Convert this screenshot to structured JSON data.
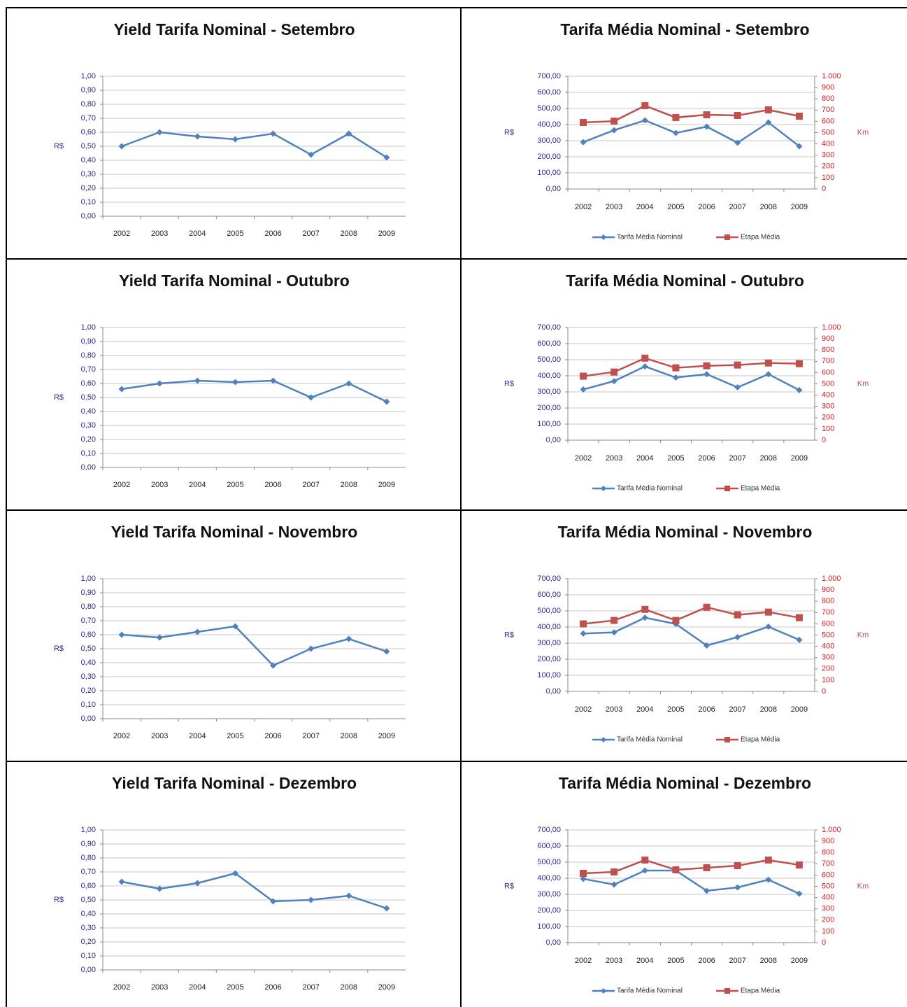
{
  "chart_data": [
    {
      "type": "line",
      "title": "Yield Tarifa Nominal - Setembro",
      "ylabel": "R$",
      "grid": true,
      "categories": [
        "2002",
        "2003",
        "2004",
        "2005",
        "2006",
        "2007",
        "2008",
        "2009"
      ],
      "values": [
        0.5,
        0.6,
        0.57,
        0.55,
        0.59,
        0.44,
        0.59,
        0.42
      ],
      "color": "#4f81bd",
      "ylim": [
        0,
        1
      ],
      "yticks": [
        {
          "value": 0,
          "label": "0,00"
        },
        {
          "value": 0.1,
          "label": "0,10"
        },
        {
          "value": 0.2,
          "label": "0,20"
        },
        {
          "value": 0.3,
          "label": "0,30"
        },
        {
          "value": 0.4,
          "label": "0,40"
        },
        {
          "value": 0.5,
          "label": "0,50"
        },
        {
          "value": 0.6,
          "label": "0,60"
        },
        {
          "value": 0.7,
          "label": "0,70"
        },
        {
          "value": 0.8,
          "label": "0,80"
        },
        {
          "value": 0.9,
          "label": "0,90"
        },
        {
          "value": 1,
          "label": "1,00"
        }
      ]
    },
    {
      "type": "line",
      "title": "Tarifa Média Nominal - Setembro",
      "ylabel": "R$",
      "y2label": "Km",
      "grid": true,
      "categories": [
        "2002",
        "2003",
        "2004",
        "2005",
        "2006",
        "2007",
        "2008",
        "2009"
      ],
      "series": [
        {
          "name": "Tarifa Média Nominal",
          "color": "#4f81bd",
          "values": [
            291,
            365,
            426,
            348,
            387,
            287,
            413,
            265
          ]
        },
        {
          "name": "Etapa Média",
          "color": "#c0504d",
          "axis": "y2",
          "values": [
            590,
            602,
            739,
            634,
            658,
            652,
            702,
            646
          ]
        }
      ],
      "ylim": [
        0,
        700
      ],
      "yticks": [
        {
          "value": 0,
          "label": "0,00"
        },
        {
          "value": 100,
          "label": "100,00"
        },
        {
          "value": 200,
          "label": "200,00"
        },
        {
          "value": 300,
          "label": "300,00"
        },
        {
          "value": 400,
          "label": "400,00"
        },
        {
          "value": 500,
          "label": "500,00"
        },
        {
          "value": 600,
          "label": "600,00"
        },
        {
          "value": 700,
          "label": "700,00"
        }
      ],
      "y2lim": [
        0,
        1000
      ],
      "y2ticks": [
        0,
        100,
        200,
        300,
        400,
        500,
        600,
        700,
        800,
        900,
        {
          "value": 1000,
          "label": "1.000"
        }
      ]
    },
    {
      "type": "line",
      "title": "Yield Tarifa Nominal - Outubro",
      "ylabel": "R$",
      "grid": true,
      "categories": [
        "2002",
        "2003",
        "2004",
        "2005",
        "2006",
        "2007",
        "2008",
        "2009"
      ],
      "values": [
        0.56,
        0.6,
        0.62,
        0.61,
        0.62,
        0.5,
        0.6,
        0.47
      ],
      "color": "#4f81bd",
      "ylim": [
        0,
        1
      ],
      "yticks": [
        {
          "value": 0,
          "label": "0,00"
        },
        {
          "value": 0.1,
          "label": "0,10"
        },
        {
          "value": 0.2,
          "label": "0,20"
        },
        {
          "value": 0.3,
          "label": "0,30"
        },
        {
          "value": 0.4,
          "label": "0,40"
        },
        {
          "value": 0.5,
          "label": "0,50"
        },
        {
          "value": 0.6,
          "label": "0,60"
        },
        {
          "value": 0.7,
          "label": "0,70"
        },
        {
          "value": 0.8,
          "label": "0,80"
        },
        {
          "value": 0.9,
          "label": "0,90"
        },
        {
          "value": 1,
          "label": "1,00"
        }
      ]
    },
    {
      "type": "line",
      "title": "Tarifa Média Nominal - Outubro",
      "ylabel": "R$",
      "y2label": "Km",
      "grid": true,
      "categories": [
        "2002",
        "2003",
        "2004",
        "2005",
        "2006",
        "2007",
        "2008",
        "2009"
      ],
      "series": [
        {
          "name": "Tarifa Média Nominal",
          "color": "#4f81bd",
          "values": [
            315,
            367,
            458,
            389,
            410,
            328,
            410,
            311
          ]
        },
        {
          "name": "Etapa Média",
          "color": "#c0504d",
          "axis": "y2",
          "values": [
            568,
            605,
            728,
            642,
            660,
            667,
            685,
            679
          ]
        }
      ],
      "ylim": [
        0,
        700
      ],
      "yticks": [
        {
          "value": 0,
          "label": "0,00"
        },
        {
          "value": 100,
          "label": "100,00"
        },
        {
          "value": 200,
          "label": "200,00"
        },
        {
          "value": 300,
          "label": "300,00"
        },
        {
          "value": 400,
          "label": "400,00"
        },
        {
          "value": 500,
          "label": "500,00"
        },
        {
          "value": 600,
          "label": "600,00"
        },
        {
          "value": 700,
          "label": "700,00"
        }
      ],
      "y2lim": [
        0,
        1000
      ],
      "y2ticks": [
        0,
        100,
        200,
        300,
        400,
        500,
        600,
        700,
        800,
        900,
        {
          "value": 1000,
          "label": "1.000"
        }
      ]
    },
    {
      "type": "line",
      "title": "Yield Tarifa Nominal - Novembro",
      "ylabel": "R$",
      "grid": true,
      "categories": [
        "2002",
        "2003",
        "2004",
        "2005",
        "2006",
        "2007",
        "2008",
        "2009"
      ],
      "values": [
        0.6,
        0.58,
        0.62,
        0.66,
        0.38,
        0.5,
        0.57,
        0.48
      ],
      "color": "#4f81bd",
      "ylim": [
        0,
        1
      ],
      "yticks": [
        {
          "value": 0,
          "label": "0,00"
        },
        {
          "value": 0.1,
          "label": "0,10"
        },
        {
          "value": 0.2,
          "label": "0,20"
        },
        {
          "value": 0.3,
          "label": "0,30"
        },
        {
          "value": 0.4,
          "label": "0,40"
        },
        {
          "value": 0.5,
          "label": "0,50"
        },
        {
          "value": 0.6,
          "label": "0,60"
        },
        {
          "value": 0.7,
          "label": "0,70"
        },
        {
          "value": 0.8,
          "label": "0,80"
        },
        {
          "value": 0.9,
          "label": "0,90"
        },
        {
          "value": 1,
          "label": "1,00"
        }
      ]
    },
    {
      "type": "line",
      "title": "Tarifa Média Nominal - Novembro",
      "ylabel": "R$",
      "y2label": "Km",
      "grid": true,
      "categories": [
        "2002",
        "2003",
        "2004",
        "2005",
        "2006",
        "2007",
        "2008",
        "2009"
      ],
      "series": [
        {
          "name": "Tarifa Média Nominal",
          "color": "#4f81bd",
          "values": [
            359,
            367,
            458,
            419,
            285,
            337,
            402,
            320
          ]
        },
        {
          "name": "Etapa Média",
          "color": "#c0504d",
          "axis": "y2",
          "values": [
            599,
            630,
            728,
            630,
            747,
            679,
            704,
            654
          ]
        }
      ],
      "ylim": [
        0,
        700
      ],
      "yticks": [
        {
          "value": 0,
          "label": "0,00"
        },
        {
          "value": 100,
          "label": "100,00"
        },
        {
          "value": 200,
          "label": "200,00"
        },
        {
          "value": 300,
          "label": "300,00"
        },
        {
          "value": 400,
          "label": "400,00"
        },
        {
          "value": 500,
          "label": "500,00"
        },
        {
          "value": 600,
          "label": "600,00"
        },
        {
          "value": 700,
          "label": "700,00"
        }
      ],
      "y2lim": [
        0,
        1000
      ],
      "y2ticks": [
        0,
        100,
        200,
        300,
        400,
        500,
        600,
        700,
        800,
        900,
        {
          "value": 1000,
          "label": "1.000"
        }
      ]
    },
    {
      "type": "line",
      "title": "Yield Tarifa Nominal - Dezembro",
      "ylabel": "R$",
      "grid": true,
      "categories": [
        "2002",
        "2003",
        "2004",
        "2005",
        "2006",
        "2007",
        "2008",
        "2009"
      ],
      "values": [
        0.63,
        0.58,
        0.62,
        0.69,
        0.49,
        0.5,
        0.53,
        0.44
      ],
      "color": "#4f81bd",
      "ylim": [
        0,
        1
      ],
      "yticks": [
        {
          "value": 0,
          "label": "0,00"
        },
        {
          "value": 0.1,
          "label": "0,10"
        },
        {
          "value": 0.2,
          "label": "0,20"
        },
        {
          "value": 0.3,
          "label": "0,30"
        },
        {
          "value": 0.4,
          "label": "0,40"
        },
        {
          "value": 0.5,
          "label": "0,50"
        },
        {
          "value": 0.6,
          "label": "0,60"
        },
        {
          "value": 0.7,
          "label": "0,70"
        },
        {
          "value": 0.8,
          "label": "0,80"
        },
        {
          "value": 0.9,
          "label": "0,90"
        },
        {
          "value": 1,
          "label": "1,00"
        }
      ]
    },
    {
      "type": "line",
      "title": "Tarifa Média Nominal - Dezembro",
      "ylabel": "R$",
      "y2label": "Km",
      "grid": true,
      "categories": [
        "2002",
        "2003",
        "2004",
        "2005",
        "2006",
        "2007",
        "2008",
        "2009"
      ],
      "series": [
        {
          "name": "Tarifa Média Nominal",
          "color": "#4f81bd",
          "values": [
            396,
            361,
            448,
            448,
            322,
            343,
            391,
            304
          ]
        },
        {
          "name": "Etapa Média",
          "color": "#c0504d",
          "axis": "y2",
          "values": [
            615,
            627,
            733,
            646,
            665,
            683,
            733,
            689
          ]
        }
      ],
      "ylim": [
        0,
        700
      ],
      "yticks": [
        {
          "value": 0,
          "label": "0,00"
        },
        {
          "value": 100,
          "label": "100,00"
        },
        {
          "value": 200,
          "label": "200,00"
        },
        {
          "value": 300,
          "label": "300,00"
        },
        {
          "value": 400,
          "label": "400,00"
        },
        {
          "value": 500,
          "label": "500,00"
        },
        {
          "value": 600,
          "label": "600,00"
        },
        {
          "value": 700,
          "label": "700,00"
        }
      ],
      "y2lim": [
        0,
        1000
      ],
      "y2ticks": [
        0,
        100,
        200,
        300,
        400,
        500,
        600,
        700,
        800,
        900,
        {
          "value": 1000,
          "label": "1.000"
        }
      ]
    }
  ]
}
